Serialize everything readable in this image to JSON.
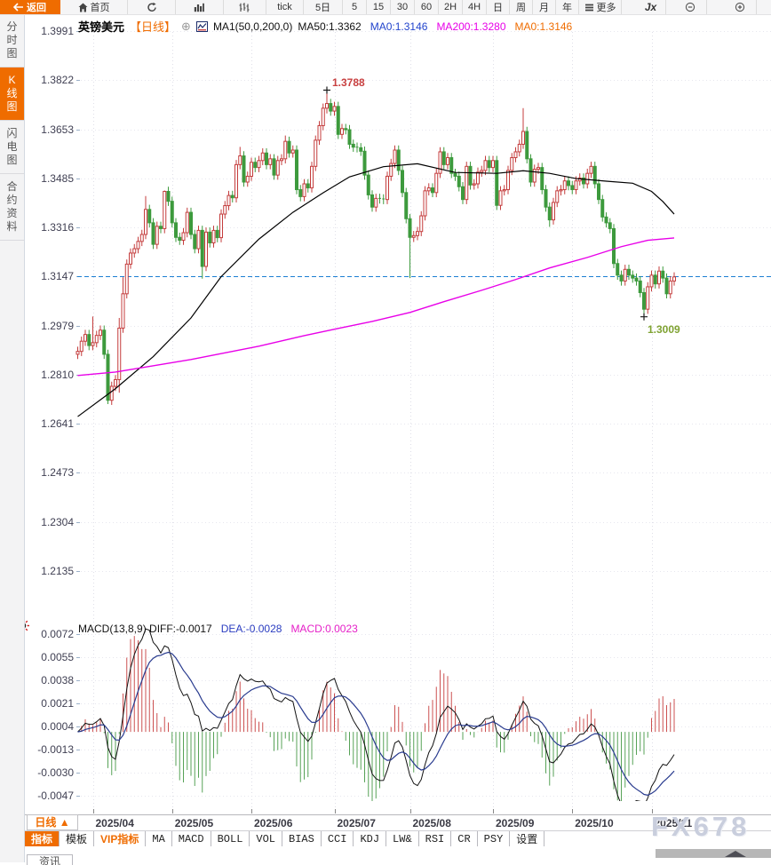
{
  "app": {
    "watermark": "FX678"
  },
  "toolbar": {
    "items": [
      {
        "name": "back-button",
        "label": "返回",
        "icon": "back-arrow-icon",
        "style": "primary"
      },
      {
        "name": "home-button",
        "label": "首页",
        "icon": "home-icon"
      },
      {
        "name": "refresh-button",
        "label": "",
        "icon": "refresh-icon"
      },
      {
        "name": "bar-chart-type-button",
        "label": "",
        "icon": "bar-chart-icon"
      },
      {
        "name": "ohlc-chart-type-button",
        "label": "",
        "icon": "ohlc-chart-icon"
      },
      {
        "name": "period-tick-button",
        "label": "tick"
      },
      {
        "name": "period-5day-button",
        "label": "5日"
      },
      {
        "name": "period-5min-button",
        "label": "5"
      },
      {
        "name": "period-15min-button",
        "label": "15"
      },
      {
        "name": "period-30min-button",
        "label": "30"
      },
      {
        "name": "period-60min-button",
        "label": "60"
      },
      {
        "name": "period-2h-button",
        "label": "2H"
      },
      {
        "name": "period-4h-button",
        "label": "4H"
      },
      {
        "name": "period-day-button",
        "label": "日"
      },
      {
        "name": "period-week-button",
        "label": "周"
      },
      {
        "name": "period-month-button",
        "label": "月"
      },
      {
        "name": "period-year-button",
        "label": "年"
      },
      {
        "name": "more-button",
        "label": "更多",
        "icon": "menu-icon"
      },
      {
        "name": "formula-button",
        "label": "Jx",
        "style": "jx"
      },
      {
        "name": "zoom-out-button",
        "label": "",
        "icon": "zoom-out-icon"
      },
      {
        "name": "zoom-in-button",
        "label": "",
        "icon": "zoom-in-icon"
      }
    ]
  },
  "sidebar": {
    "items": [
      {
        "name": "sidebar-item-time-chart",
        "label": "分时图",
        "active": false
      },
      {
        "name": "sidebar-item-kline-chart",
        "label": "K线图",
        "active": true
      },
      {
        "name": "sidebar-item-lightning-chart",
        "label": "闪电图",
        "active": false
      },
      {
        "name": "sidebar-item-contract-info",
        "label": "合约资料",
        "active": false
      }
    ]
  },
  "chart_header": {
    "symbol": "英镑美元",
    "period": "【日线】",
    "expand_icon": "⊕",
    "ma_settings": "MA1(50,0,200,0)",
    "values": [
      {
        "text": "MA50:1.3362",
        "color": "#111111"
      },
      {
        "text": "MA0:1.3146",
        "color": "#2244cc"
      },
      {
        "text": "MA200:1.3280",
        "color": "#e800e8"
      },
      {
        "text": "MA0:1.3146",
        "color": "#ef6c00"
      }
    ]
  },
  "macd_header": {
    "title": "MACD(13,8,9) DIFF:-0.0017",
    "title_color": "#111111",
    "dea": "DEA:-0.0028",
    "dea_color": "#2a3cc0",
    "macd": "MACD:0.0023",
    "macd_color": "#e520c8"
  },
  "bottom": {
    "period_button": "日线 ▲",
    "news_tab": "资讯",
    "tabs": [
      {
        "name": "tab-indicator",
        "label": "指标",
        "selected": true
      },
      {
        "name": "tab-template",
        "label": "模板"
      },
      {
        "name": "tab-vip-indicator",
        "label": "VIP指标",
        "accent": true
      },
      {
        "name": "tab-ma",
        "label": "MA",
        "mono": true
      },
      {
        "name": "tab-macd",
        "label": "MACD",
        "mono": true
      },
      {
        "name": "tab-boll",
        "label": "BOLL",
        "mono": true
      },
      {
        "name": "tab-vol",
        "label": "VOL",
        "mono": true
      },
      {
        "name": "tab-bias",
        "label": "BIAS",
        "mono": true
      },
      {
        "name": "tab-cci",
        "label": "CCI",
        "mono": true
      },
      {
        "name": "tab-kdj",
        "label": "KDJ",
        "mono": true
      },
      {
        "name": "tab-lw",
        "label": "LW&",
        "mono": true
      },
      {
        "name": "tab-rsi",
        "label": "RSI",
        "mono": true
      },
      {
        "name": "tab-cr",
        "label": "CR",
        "mono": true
      },
      {
        "name": "tab-psy",
        "label": "PSY",
        "mono": true
      },
      {
        "name": "tab-settings",
        "label": "设置"
      }
    ]
  },
  "chart_data": {
    "type": "candlestick+macd",
    "symbol": "英镑美元 (GBP/USD)",
    "period": "日线 daily",
    "main_y_ticks": [
      "1.3991",
      "1.3822",
      "1.3653",
      "1.3485",
      "1.3316",
      "1.3147",
      "1.2979",
      "1.2810",
      "1.2641",
      "1.2473",
      "1.2304",
      "1.2135"
    ],
    "main_y_range": [
      1.2135,
      1.3991
    ],
    "macd_y_ticks": [
      "0.0072",
      "0.0055",
      "0.0038",
      "0.0021",
      "0.0004",
      "-0.0013",
      "-0.0030",
      "-0.0047"
    ],
    "macd_y_range": [
      -0.0047,
      0.0072
    ],
    "x_ticks": [
      {
        "label": "2025/04",
        "index": 4
      },
      {
        "label": "2025/05",
        "index": 25
      },
      {
        "label": "2025/06",
        "index": 46
      },
      {
        "label": "2025/07",
        "index": 68
      },
      {
        "label": "2025/08",
        "index": 88
      },
      {
        "label": "2025/09",
        "index": 110
      },
      {
        "label": "2025/10",
        "index": 131
      },
      {
        "label": "2025/11",
        "index": 152
      }
    ],
    "current_price": 1.3147,
    "first_open": 1.288,
    "default_wick": 0.0016,
    "closes": [
      1.289,
      1.2925,
      1.2948,
      1.291,
      1.292,
      1.2945,
      1.2963,
      1.288,
      1.2722,
      1.277,
      1.2793,
      1.297,
      1.3088,
      1.319,
      1.3228,
      1.3243,
      1.3268,
      1.3292,
      1.3378,
      1.3332,
      1.3258,
      1.332,
      1.3312,
      1.344,
      1.3406,
      1.3332,
      1.3282,
      1.3272,
      1.3298,
      1.3368,
      1.3292,
      1.3243,
      1.3306,
      1.3182,
      1.33,
      1.3263,
      1.3306,
      1.3281,
      1.3362,
      1.3391,
      1.3426,
      1.3418,
      1.3532,
      1.3562,
      1.3472,
      1.3492,
      1.354,
      1.3522,
      1.3546,
      1.3572,
      1.3532,
      1.3552,
      1.3496,
      1.3546,
      1.3552,
      1.3612,
      1.3572,
      1.3582,
      1.3446,
      1.3422,
      1.3466,
      1.3452,
      1.3526,
      1.3616,
      1.3666,
      1.3726,
      1.3742,
      1.3716,
      1.3732,
      1.3636,
      1.3656,
      1.3652,
      1.3602,
      1.3592,
      1.359,
      1.3578,
      1.3496,
      1.3428,
      1.3386,
      1.3416,
      1.3414,
      1.3412,
      1.3492,
      1.3536,
      1.3582,
      1.3512,
      1.3436,
      1.3346,
      1.3282,
      1.3288,
      1.3302,
      1.3356,
      1.3442,
      1.3452,
      1.3436,
      1.3502,
      1.3576,
      1.3532,
      1.3556,
      1.3502,
      1.3492,
      1.3456,
      1.3412,
      1.3526,
      1.3462,
      1.3466,
      1.3506,
      1.3512,
      1.3546,
      1.3522,
      1.3546,
      1.3392,
      1.3442,
      1.3446,
      1.3512,
      1.3556,
      1.3576,
      1.3602,
      1.3646,
      1.3552,
      1.3472,
      1.3516,
      1.3522,
      1.3446,
      1.3386,
      1.3342,
      1.3402,
      1.3442,
      1.3446,
      1.3476,
      1.346,
      1.3446,
      1.3476,
      1.3486,
      1.3466,
      1.3502,
      1.3526,
      1.3466,
      1.3412,
      1.3352,
      1.3332,
      1.3312,
      1.3192,
      1.3152,
      1.3132,
      1.3172,
      1.3152,
      1.3142,
      1.3132,
      1.3092,
      1.3035,
      1.3112,
      1.3152,
      1.3122,
      1.3166,
      1.3142,
      1.3088,
      1.3132,
      1.3146
    ],
    "wick_overrides": {
      "4": [
        1.301,
        null
      ],
      "8": [
        null,
        1.2709
      ],
      "11": [
        1.3005,
        1.2748
      ],
      "12": [
        1.3145,
        null
      ],
      "18": [
        1.3424,
        null
      ],
      "23": [
        1.3443,
        null
      ],
      "33": [
        null,
        1.314
      ],
      "43": [
        1.3593,
        null
      ],
      "55": [
        1.3632,
        null
      ],
      "66": [
        1.3788,
        1.3708
      ],
      "88": [
        null,
        1.3142
      ],
      "118": [
        1.3726,
        null
      ],
      "125": [
        null,
        1.3318
      ],
      "150": [
        null,
        1.3009
      ]
    },
    "ma50_points": [
      [
        0,
        1.2666
      ],
      [
        10,
        1.2762
      ],
      [
        20,
        1.2872
      ],
      [
        30,
        1.3005
      ],
      [
        38,
        1.3147
      ],
      [
        48,
        1.3276
      ],
      [
        57,
        1.3368
      ],
      [
        65,
        1.3435
      ],
      [
        72,
        1.349
      ],
      [
        81,
        1.3525
      ],
      [
        90,
        1.3535
      ],
      [
        100,
        1.3505
      ],
      [
        111,
        1.3502
      ],
      [
        118,
        1.3511
      ],
      [
        125,
        1.3502
      ],
      [
        132,
        1.3484
      ],
      [
        140,
        1.3475
      ],
      [
        147,
        1.3468
      ],
      [
        152,
        1.344
      ],
      [
        155,
        1.3405
      ],
      [
        158,
        1.3362
      ]
    ],
    "ma200_points": [
      [
        0,
        1.2807
      ],
      [
        10,
        1.2819
      ],
      [
        30,
        1.2862
      ],
      [
        48,
        1.2908
      ],
      [
        60,
        1.2944
      ],
      [
        69,
        1.2969
      ],
      [
        78,
        1.2993
      ],
      [
        88,
        1.3024
      ],
      [
        97,
        1.3061
      ],
      [
        107,
        1.31
      ],
      [
        116,
        1.3137
      ],
      [
        125,
        1.3177
      ],
      [
        135,
        1.3213
      ],
      [
        144,
        1.325
      ],
      [
        151,
        1.3272
      ],
      [
        158,
        1.328
      ]
    ],
    "macd": {
      "params": [
        13,
        8,
        9
      ],
      "diff": -0.0017,
      "dea": -0.0028,
      "macd": 0.0023
    },
    "annotations": [
      {
        "name": "high-annotation",
        "index": 66,
        "price": 1.3788,
        "label": "1.3788",
        "color": "#c84040",
        "placement": "above"
      },
      {
        "name": "low-annotation",
        "index": 150,
        "price": 1.3009,
        "label": "1.3009",
        "color": "#7fa232",
        "placement": "below"
      }
    ],
    "colors": {
      "up": "#c43c3c",
      "down": "#3d9a3d",
      "ma50": "#000000",
      "ma200": "#e800e8",
      "diff_line": "#111111",
      "dea_line": "#283a8e",
      "hist_pos": "#cc5050",
      "hist_neg": "#57a257",
      "dashed_price": "#1c7ed2",
      "grid": "#e6e6ee",
      "month_grid": "#dfdfe8",
      "marker": "#1a1a1a"
    }
  }
}
